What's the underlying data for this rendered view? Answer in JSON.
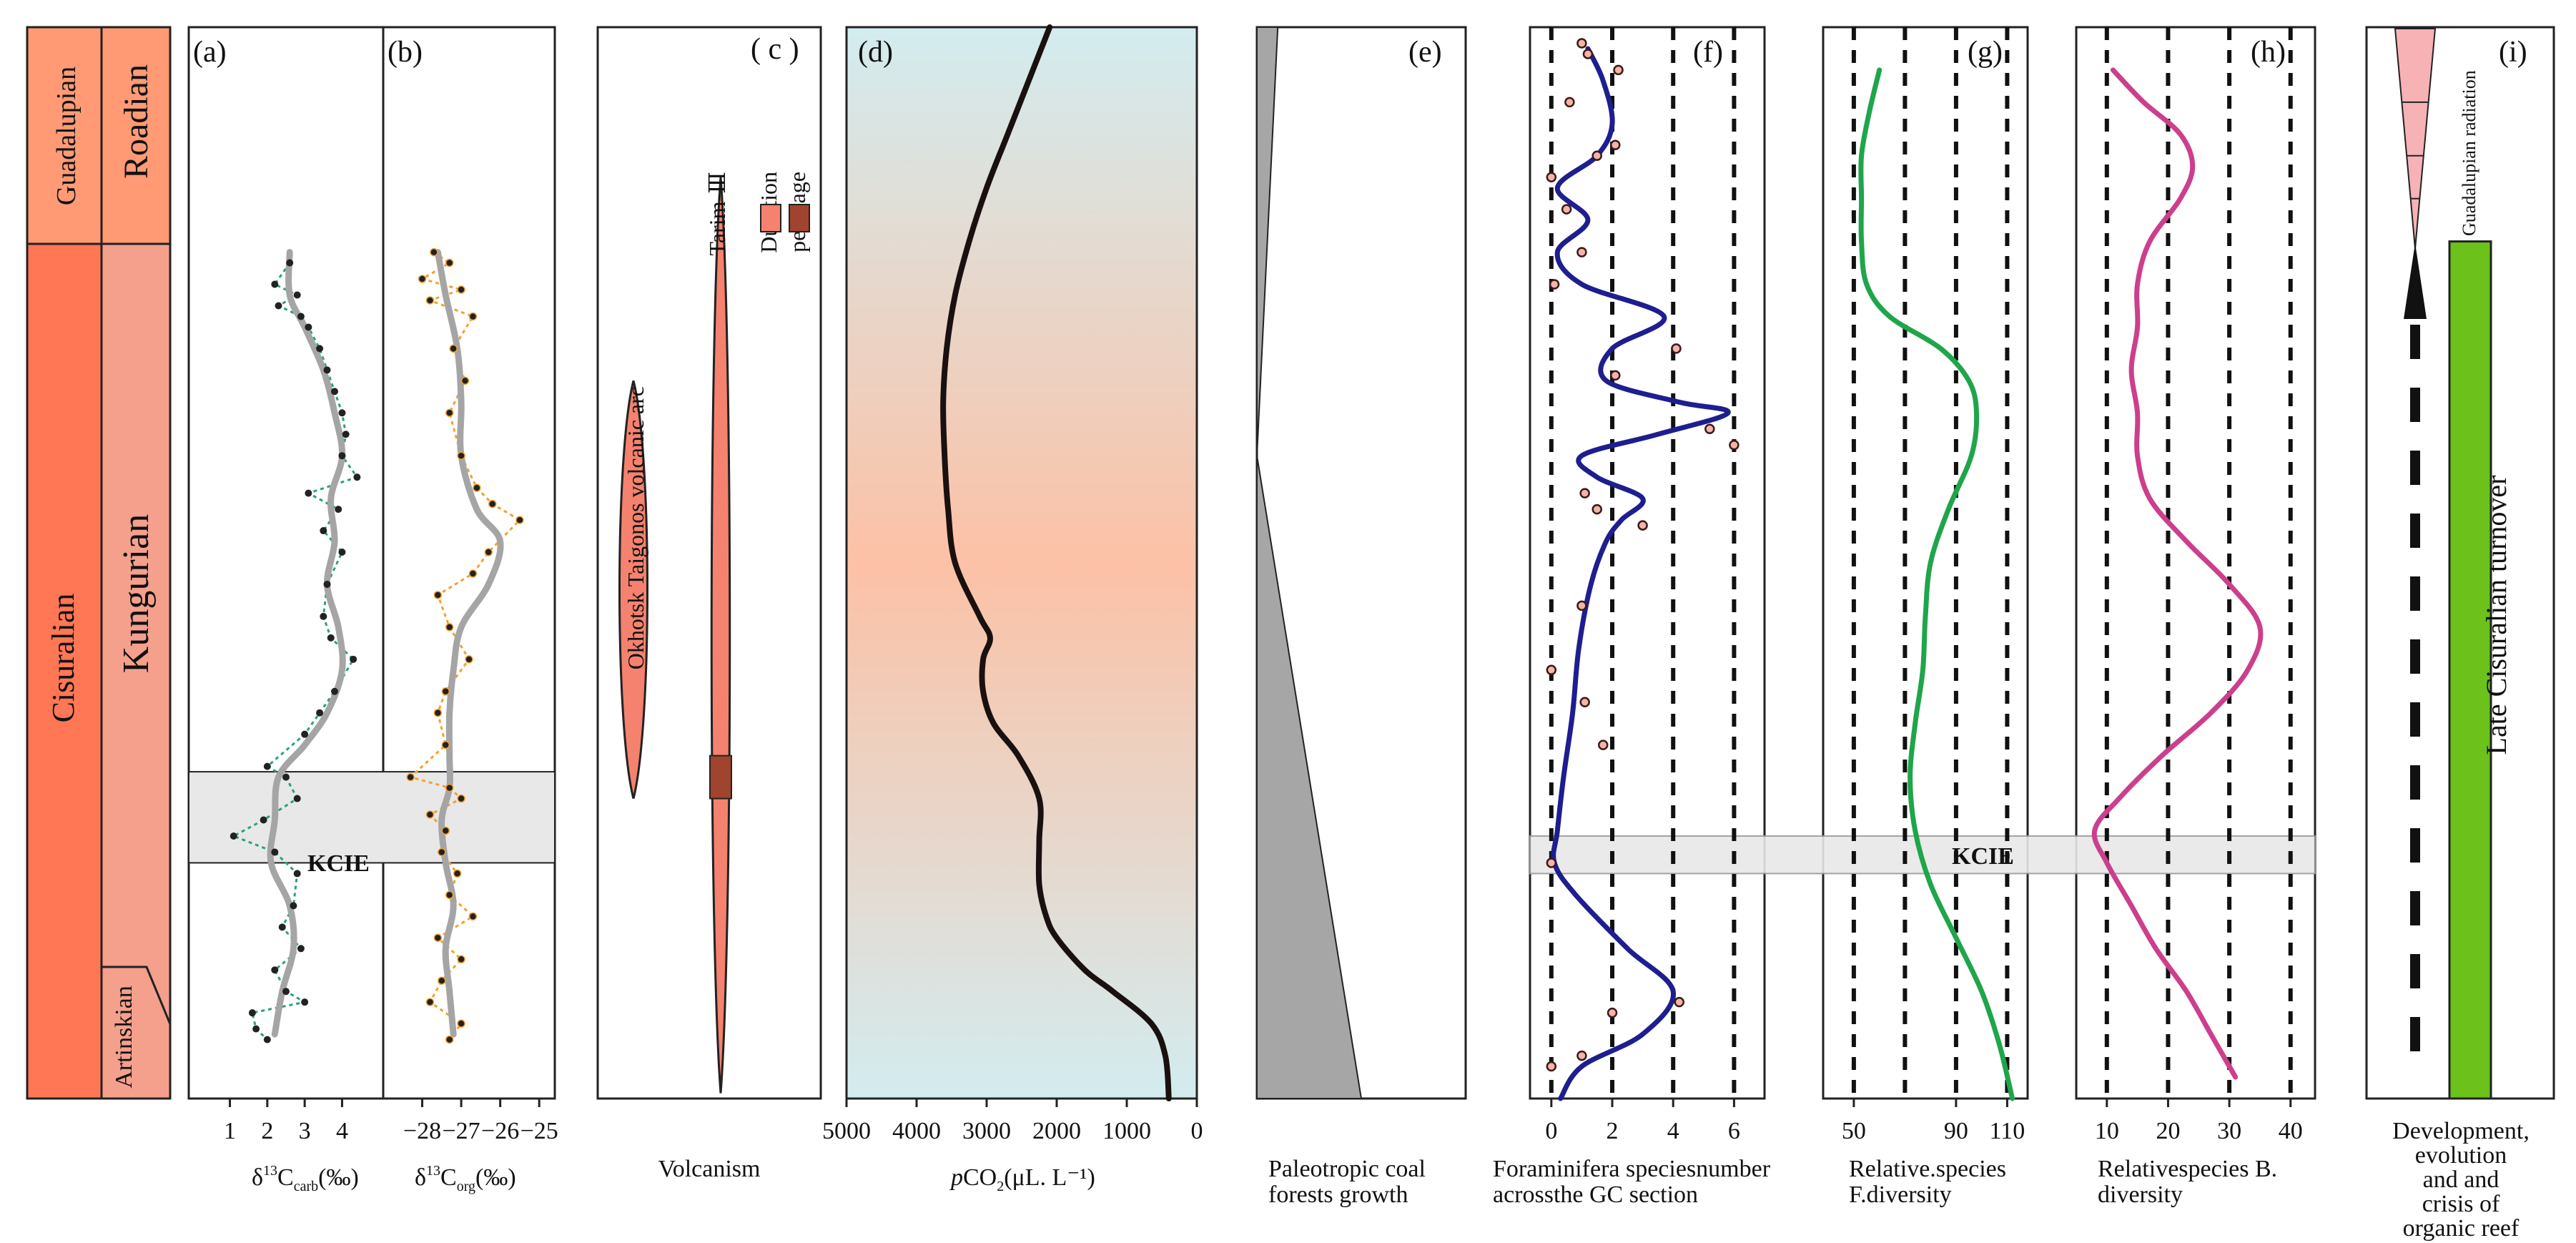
{
  "colors": {
    "cisuralian": "#FF7755",
    "guadalupian": "#FF9A74",
    "kungurian": "#F4A08D",
    "roadian": "#FF9A74",
    "artinskian": "#F4A08D",
    "kcie_band": "#E8E8E8",
    "volcanic": "#F4826E",
    "peak_age": "#A0442F",
    "coal": "#A6A6A6",
    "foram_curve": "#1E1E90",
    "fdiv_curve": "#1FA54A",
    "bdiv_curve": "#CC3F8C",
    "carb_dashed": "#2AA085",
    "org_dashed": "#F5A030",
    "smooth_gray": "#A5A5A5",
    "reef_green": "#6CC21A",
    "radiation_pink": "#F7B2B6",
    "pco2_mid": "#FCC1A6",
    "pco2_edge": "#D3ECEF"
  },
  "stratigraphy": {
    "series": [
      {
        "name": "Guadalupian",
        "from": 0.0,
        "to": 0.2
      },
      {
        "name": "Cisuralian",
        "from": 0.2,
        "to": 1.0
      }
    ],
    "stages": [
      {
        "name": "Roadian",
        "from": 0.0,
        "to": 0.2
      },
      {
        "name": "Kungurian",
        "from": 0.2,
        "to": 0.89
      },
      {
        "name": "Artinskian",
        "from": 0.89,
        "to": 1.0
      }
    ]
  },
  "chart_data": [
    {
      "id": "a",
      "panel_label": "(a)",
      "type": "scatter",
      "title": "",
      "xlabel_main": "δ",
      "xlabel_sup": "13",
      "xlabel_sub": "carb",
      "xlabel_tail": "C",
      "xlabel_unit": "(‰)",
      "xlim": [
        -0.1,
        5.1
      ],
      "xticks": [
        1,
        2,
        3,
        4
      ],
      "xtick_labels": [
        "1",
        "2",
        "3",
        "4"
      ],
      "kcie_label": "KCIE",
      "kcie_range": [
        0.695,
        0.78
      ],
      "points_y": [
        0.22,
        0.24,
        0.25,
        0.26,
        0.27,
        0.28,
        0.3,
        0.32,
        0.34,
        0.36,
        0.38,
        0.4,
        0.42,
        0.435,
        0.45,
        0.47,
        0.49,
        0.52,
        0.55,
        0.57,
        0.59,
        0.62,
        0.64,
        0.66,
        0.69,
        0.7,
        0.72,
        0.74,
        0.755,
        0.77,
        0.79,
        0.82,
        0.84,
        0.86,
        0.88,
        0.9,
        0.91,
        0.92,
        0.935,
        0.945
      ],
      "points_x": [
        2.6,
        2.2,
        2.8,
        2.3,
        2.9,
        3.1,
        3.4,
        3.6,
        3.8,
        4.0,
        4.1,
        4.0,
        4.4,
        3.1,
        3.9,
        3.5,
        4.0,
        3.6,
        3.5,
        3.7,
        4.3,
        3.8,
        3.4,
        3.0,
        2.0,
        2.5,
        2.8,
        1.9,
        1.1,
        2.2,
        2.8,
        2.7,
        2.4,
        2.9,
        2.2,
        2.5,
        3.0,
        1.6,
        1.7,
        2.0
      ],
      "smooth_y": [
        0.21,
        0.25,
        0.28,
        0.32,
        0.36,
        0.4,
        0.44,
        0.48,
        0.52,
        0.56,
        0.6,
        0.64,
        0.67,
        0.7,
        0.74,
        0.78,
        0.82,
        0.86,
        0.9,
        0.94
      ],
      "smooth_x": [
        2.6,
        2.6,
        3.0,
        3.5,
        3.8,
        4.0,
        3.7,
        3.8,
        3.6,
        3.9,
        4.0,
        3.6,
        3.0,
        2.3,
        2.2,
        2.1,
        2.6,
        2.7,
        2.4,
        2.2
      ]
    },
    {
      "id": "b",
      "panel_label": "(b)",
      "type": "scatter",
      "xlabel_main": "δ",
      "xlabel_sup": "13",
      "xlabel_sub": "org",
      "xlabel_tail": "C",
      "xlabel_unit": "(‰)",
      "xlim": [
        -29.0,
        -24.6
      ],
      "xticks": [
        -28,
        -27,
        -26,
        -25
      ],
      "xtick_labels": [
        "−28",
        "−27",
        "−26",
        "−25"
      ],
      "kcie_range": [
        0.695,
        0.78
      ],
      "points_y": [
        0.21,
        0.22,
        0.235,
        0.245,
        0.255,
        0.27,
        0.3,
        0.33,
        0.36,
        0.4,
        0.43,
        0.445,
        0.46,
        0.49,
        0.51,
        0.53,
        0.56,
        0.59,
        0.62,
        0.64,
        0.67,
        0.7,
        0.71,
        0.72,
        0.735,
        0.75,
        0.77,
        0.79,
        0.81,
        0.83,
        0.85,
        0.87,
        0.89,
        0.91,
        0.93,
        0.945
      ],
      "points_x": [
        -27.7,
        -27.3,
        -28.0,
        -27.0,
        -27.8,
        -26.7,
        -27.2,
        -26.9,
        -27.3,
        -27.0,
        -26.6,
        -26.2,
        -25.5,
        -26.3,
        -26.7,
        -27.6,
        -27.3,
        -26.8,
        -27.4,
        -27.6,
        -27.4,
        -28.3,
        -27.3,
        -27.0,
        -27.8,
        -27.4,
        -27.5,
        -27.1,
        -27.3,
        -26.7,
        -27.6,
        -27.0,
        -27.5,
        -27.8,
        -27.0,
        -27.3
      ],
      "smooth_y": [
        0.21,
        0.25,
        0.3,
        0.35,
        0.4,
        0.45,
        0.48,
        0.52,
        0.56,
        0.6,
        0.64,
        0.68,
        0.71,
        0.74,
        0.78,
        0.82,
        0.86,
        0.9,
        0.94
      ],
      "smooth_x": [
        -27.6,
        -27.4,
        -27.1,
        -27.0,
        -27.0,
        -26.6,
        -26.0,
        -26.3,
        -27.0,
        -27.2,
        -27.3,
        -27.3,
        -27.3,
        -27.5,
        -27.4,
        -27.2,
        -27.4,
        -27.3,
        -27.2
      ]
    },
    {
      "id": "c",
      "panel_label": "( c )",
      "type": "range",
      "xlabel": "Volcanism",
      "events": [
        {
          "name": "Okhotsk Taigonos volcanic arc",
          "from": 0.33,
          "to": 0.72
        },
        {
          "name": "Tarim-Ⅲ",
          "from": 0.14,
          "to": 0.995,
          "peak": [
            0.68,
            0.72
          ]
        }
      ],
      "legend": [
        {
          "label": "Duration"
        },
        {
          "label": "peak age"
        }
      ]
    },
    {
      "id": "d",
      "panel_label": "(d)",
      "type": "line",
      "xlabel_main": "CO",
      "xlabel_prefix": "p",
      "xlabel_sub": "2",
      "xlabel_unit": "(μL. L⁻¹)",
      "xlim": [
        5000,
        0
      ],
      "xticks": [
        5000,
        4000,
        3000,
        2000,
        1000,
        0
      ],
      "xtick_labels": [
        "5000",
        "4000",
        "3000",
        "2000",
        "1000",
        "0"
      ],
      "y": [
        0.0,
        0.05,
        0.1,
        0.15,
        0.2,
        0.25,
        0.3,
        0.35,
        0.4,
        0.45,
        0.5,
        0.55,
        0.57,
        0.59,
        0.62,
        0.65,
        0.68,
        0.72,
        0.76,
        0.8,
        0.83,
        0.85,
        0.88,
        0.9,
        0.93,
        0.96,
        1.0
      ],
      "x": [
        2100,
        2400,
        2700,
        3000,
        3250,
        3450,
        3570,
        3620,
        3600,
        3550,
        3450,
        3100,
        2950,
        3050,
        3050,
        2900,
        2550,
        2250,
        2250,
        2250,
        2150,
        2000,
        1600,
        1200,
        650,
        450,
        400
      ]
    },
    {
      "id": "e",
      "panel_label": "(e)",
      "type": "area",
      "xlabel": "Paleotropic coal forests growth",
      "y": [
        0.0,
        0.4,
        1.0
      ],
      "width_frac": [
        0.1,
        0.0,
        0.5
      ]
    },
    {
      "id": "f",
      "panel_label": "(f)",
      "type": "line",
      "xlabel": "Foraminifera speciesnumber acrossthe GC section",
      "xlim": [
        -0.7,
        7.0
      ],
      "xticks": [
        0,
        2,
        4,
        6
      ],
      "xtick_labels": [
        "0",
        "2",
        "4",
        "6"
      ],
      "kcie_label": "KCIE",
      "kcie_range": [
        0.755,
        0.79
      ],
      "y": [
        0.02,
        0.05,
        0.09,
        0.12,
        0.15,
        0.18,
        0.21,
        0.24,
        0.27,
        0.3,
        0.33,
        0.35,
        0.36,
        0.38,
        0.4,
        0.42,
        0.44,
        0.46,
        0.48,
        0.52,
        0.58,
        0.64,
        0.7,
        0.75,
        0.78,
        0.81,
        0.86,
        0.9,
        0.94,
        0.97,
        1.0
      ],
      "x": [
        1.2,
        1.7,
        2.0,
        1.5,
        0.2,
        1.2,
        0.2,
        1.0,
        3.7,
        2.0,
        1.8,
        4.2,
        5.8,
        3.5,
        1.0,
        1.5,
        3.0,
        2.3,
        1.8,
        1.3,
        0.9,
        0.7,
        0.4,
        0.2,
        0.1,
        0.8,
        2.5,
        4.0,
        3.0,
        1.0,
        0.3
      ],
      "points_y": [
        0.015,
        0.025,
        0.04,
        0.07,
        0.11,
        0.12,
        0.14,
        0.17,
        0.21,
        0.24,
        0.3,
        0.325,
        0.375,
        0.39,
        0.435,
        0.45,
        0.465,
        0.54,
        0.6,
        0.63,
        0.67,
        0.78,
        0.91,
        0.92,
        0.96,
        0.97
      ],
      "points_x": [
        1.0,
        1.2,
        2.2,
        0.6,
        2.1,
        1.5,
        0.0,
        0.5,
        1.0,
        0.1,
        4.1,
        2.1,
        5.2,
        6.0,
        1.1,
        1.5,
        3.0,
        1.0,
        0.0,
        1.1,
        1.7,
        0.0,
        4.2,
        2.0,
        1.0,
        0.0
      ]
    },
    {
      "id": "g",
      "panel_label": "(g)",
      "type": "line",
      "xlabel": "Relative.species F.diversity",
      "xlim": [
        38,
        118
      ],
      "xticks": [
        50,
        90,
        110
      ],
      "xtick_labels": [
        "50",
        "90",
        "110"
      ],
      "grid_x": [
        50,
        70,
        90,
        110
      ],
      "y": [
        0.04,
        0.08,
        0.12,
        0.16,
        0.2,
        0.24,
        0.27,
        0.3,
        0.33,
        0.36,
        0.4,
        0.45,
        0.5,
        0.55,
        0.6,
        0.65,
        0.7,
        0.75,
        0.8,
        0.85,
        0.9,
        0.95,
        1.0
      ],
      "x": [
        60,
        56,
        53,
        53,
        53,
        55,
        64,
        84,
        95,
        98,
        96,
        87,
        80,
        78,
        77,
        74,
        72,
        74,
        80,
        90,
        100,
        107,
        112
      ]
    },
    {
      "id": "h",
      "panel_label": "(h)",
      "type": "line",
      "xlabel": "Relativespecies B. diversity",
      "xlim": [
        5,
        44
      ],
      "xticks": [
        10,
        20,
        30,
        40
      ],
      "xtick_labels": [
        "10",
        "20",
        "30",
        "40"
      ],
      "grid_x": [
        10,
        20,
        30,
        40
      ],
      "y": [
        0.04,
        0.07,
        0.1,
        0.13,
        0.16,
        0.2,
        0.24,
        0.28,
        0.32,
        0.36,
        0.4,
        0.44,
        0.48,
        0.52,
        0.56,
        0.6,
        0.64,
        0.68,
        0.72,
        0.75,
        0.78,
        0.82,
        0.86,
        0.9,
        0.94,
        0.98
      ],
      "x": [
        11,
        16,
        22,
        24,
        22,
        17,
        15,
        15,
        14,
        15,
        15,
        17,
        23,
        30,
        35,
        33,
        27,
        19,
        12,
        8,
        10,
        14,
        18,
        23,
        27,
        31
      ]
    },
    {
      "id": "i",
      "panel_label": "(i)",
      "type": "diagram",
      "xlabel": "Development, evolution and and crisis of organic reef",
      "radiation_label": "Guadalupian radiation",
      "turnover_label": "Late Cisuralian turnover",
      "turnover_range": [
        0.2,
        1.0
      ],
      "radiation_range": [
        0.0,
        0.2
      ]
    }
  ]
}
